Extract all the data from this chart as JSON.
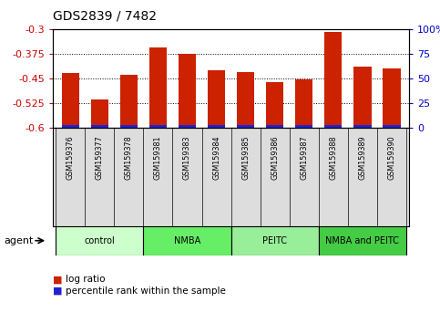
{
  "title": "GDS2839 / 7482",
  "samples": [
    "GSM159376",
    "GSM159377",
    "GSM159378",
    "GSM159381",
    "GSM159383",
    "GSM159384",
    "GSM159385",
    "GSM159386",
    "GSM159387",
    "GSM159388",
    "GSM159389",
    "GSM159390"
  ],
  "log_ratio": [
    -0.435,
    -0.515,
    -0.438,
    -0.355,
    -0.375,
    -0.425,
    -0.43,
    -0.462,
    -0.453,
    -0.31,
    -0.415,
    -0.42
  ],
  "y_min": -0.6,
  "y_max": -0.3,
  "yticks_left": [
    -0.3,
    -0.375,
    -0.45,
    -0.525,
    -0.6
  ],
  "yticks_right": [
    100,
    75,
    50,
    25,
    0
  ],
  "groups": [
    {
      "label": "control",
      "start": 0,
      "end": 3,
      "color": "#ccffcc"
    },
    {
      "label": "NMBA",
      "start": 3,
      "end": 6,
      "color": "#66ee66"
    },
    {
      "label": "PEITC",
      "start": 6,
      "end": 9,
      "color": "#99ee99"
    },
    {
      "label": "NMBA and PEITC",
      "start": 9,
      "end": 12,
      "color": "#44cc44"
    }
  ],
  "bar_color": "#cc2200",
  "percentile_color": "#2222cc",
  "bar_width": 0.6,
  "tick_label_color_left": "#cc0000",
  "tick_label_color_right": "#0000cc",
  "legend_log_ratio_color": "#cc2200",
  "legend_percentile_color": "#2222cc",
  "agent_label": "agent"
}
